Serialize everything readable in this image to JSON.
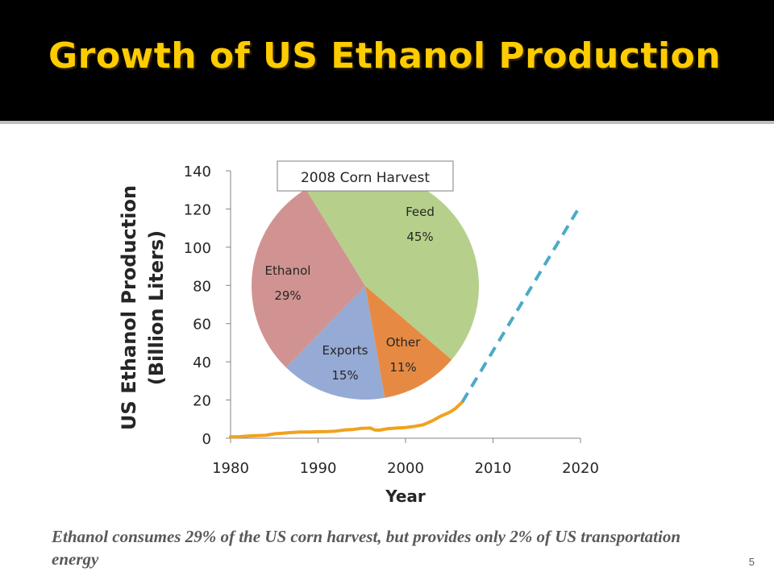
{
  "slide": {
    "title": "Growth of US Ethanol Production",
    "caption": "Ethanol consumes 29% of the US corn harvest, but provides only 2% of US transportation energy",
    "page_number": "5",
    "title_color": "#ffcc00"
  },
  "chart_data": [
    {
      "type": "line",
      "title": "",
      "xlabel": "Year",
      "ylabel": "US Ethanol Production\n(Billion Liters)",
      "xlim": [
        1980,
        2020
      ],
      "ylim": [
        0,
        140
      ],
      "xticks": [
        1980,
        1990,
        2000,
        2010,
        2020
      ],
      "yticks": [
        0,
        20,
        40,
        60,
        80,
        100,
        120,
        140
      ],
      "grid": false,
      "series": [
        {
          "color": "#f0a21e",
          "style": "solid",
          "points": [
            [
              1980,
              0.7
            ],
            [
              1981,
              0.8
            ],
            [
              1982,
              1.2
            ],
            [
              1983,
              1.4
            ],
            [
              1984,
              1.5
            ],
            [
              1985,
              2.3
            ],
            [
              1986,
              2.6
            ],
            [
              1987,
              3.0
            ],
            [
              1988,
              3.3
            ],
            [
              1989,
              3.3
            ],
            [
              1990,
              3.4
            ],
            [
              1991,
              3.5
            ],
            [
              1992,
              3.7
            ],
            [
              1993,
              4.3
            ],
            [
              1994,
              4.6
            ],
            [
              1995,
              5.2
            ],
            [
              1996,
              5.3
            ],
            [
              1996.5,
              4.3
            ],
            [
              1997,
              4.2
            ],
            [
              1998,
              5.0
            ],
            [
              1999,
              5.3
            ],
            [
              2000,
              5.6
            ],
            [
              2001,
              6.2
            ],
            [
              2002,
              7.0
            ],
            [
              2003,
              9.0
            ],
            [
              2004,
              11.5
            ],
            [
              2005,
              13.5
            ],
            [
              2005.7,
              15.5
            ],
            [
              2006.5,
              19.0
            ]
          ]
        },
        {
          "color": "#4aabc6",
          "style": "dashed",
          "points": [
            [
              2006.5,
              19.0
            ],
            [
              2020,
              122.0
            ]
          ]
        }
      ]
    },
    {
      "type": "pie",
      "title": "2008 Corn Harvest",
      "slices": [
        {
          "label": "Feed",
          "value": 45,
          "display": "45%",
          "color": "#b6d08b"
        },
        {
          "label": "Other",
          "value": 11,
          "display": "11%",
          "color": "#e68a43"
        },
        {
          "label": "Exports",
          "value": 15,
          "display": "15%",
          "color": "#95aad4"
        },
        {
          "label": "Ethanol",
          "value": 29,
          "display": "29%",
          "color": "#d09391"
        }
      ]
    }
  ]
}
